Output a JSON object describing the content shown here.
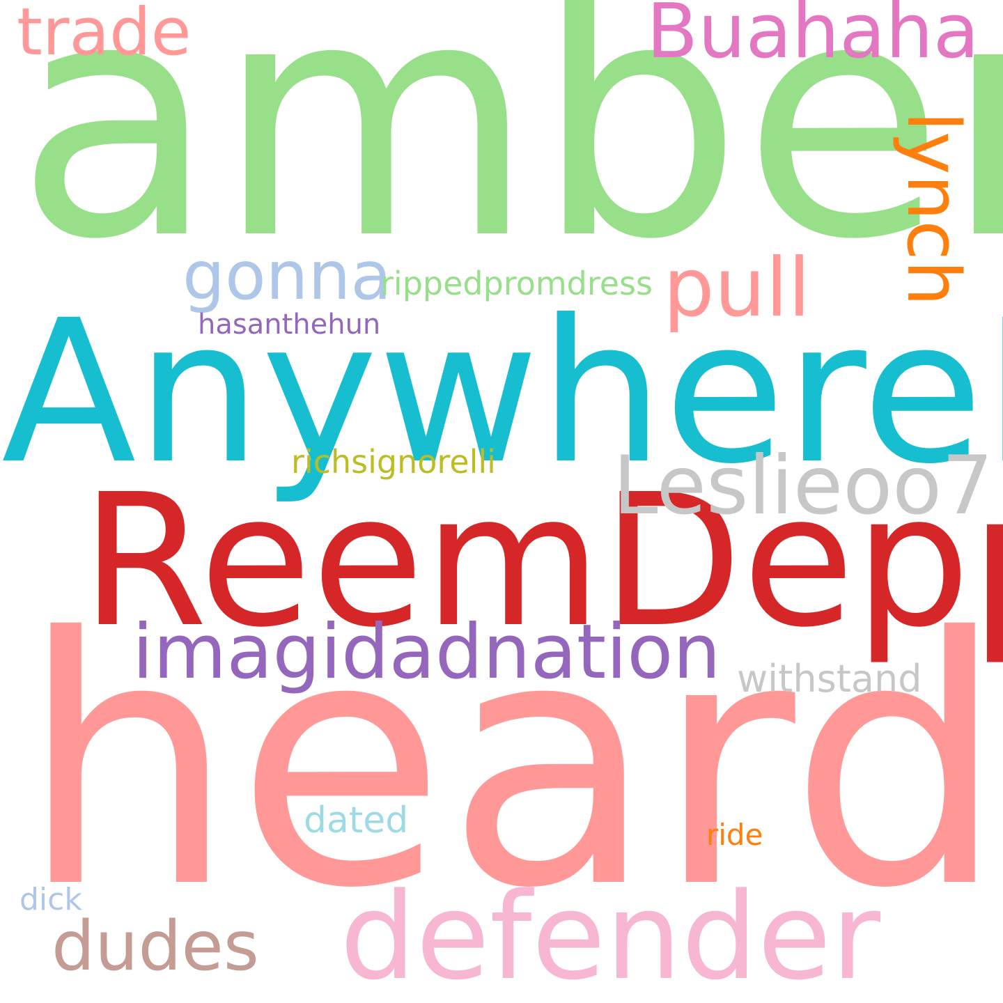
{
  "words": [
    {
      "text": "amber",
      "color": "#98df8a"
    },
    {
      "text": "heard",
      "color": "#ff9896"
    },
    {
      "text": "AnywhereN",
      "color": "#17becf"
    },
    {
      "text": "ReemDepp",
      "color": "#d62728"
    },
    {
      "text": "defender",
      "color": "#f7b6d2"
    },
    {
      "text": "imagidadnation",
      "color": "#9467bd"
    },
    {
      "text": "Leslieoo7",
      "color": "#c7c7c7"
    },
    {
      "text": "Buahaha",
      "color": "#e377c2"
    },
    {
      "text": "trade",
      "color": "#ff9896"
    },
    {
      "text": "gonna",
      "color": "#aec7e8"
    },
    {
      "text": "pull",
      "color": "#ff9896"
    },
    {
      "text": "lynch",
      "color": "#ff7f0e"
    },
    {
      "text": "dudes",
      "color": "#c49c94"
    },
    {
      "text": "withstand",
      "color": "#c7c7c7"
    },
    {
      "text": "rippedpromdress",
      "color": "#98df8a"
    },
    {
      "text": "hasanthehun",
      "color": "#9467bd"
    },
    {
      "text": "richsignorelli",
      "color": "#bcbd22"
    },
    {
      "text": "dated",
      "color": "#9edae5"
    },
    {
      "text": "ride",
      "color": "#ff7f0e"
    },
    {
      "text": "dick",
      "color": "#aec7e8"
    }
  ]
}
